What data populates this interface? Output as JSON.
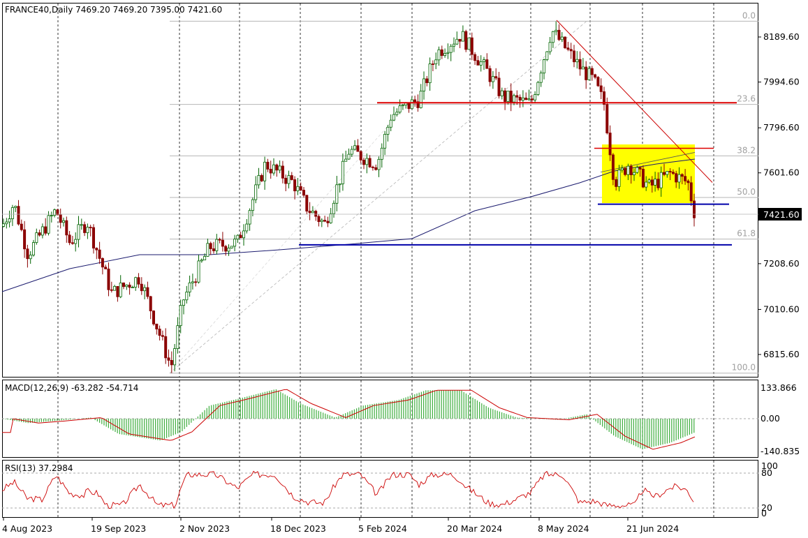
{
  "chart_data": {
    "type": "candlestick",
    "symbol": "FRANCE40",
    "timeframe": "Daily",
    "header": "FRANCE40,Daily  7469.20 7469.20 7395.00 7421.60",
    "ohlc": {
      "open": "7469.20",
      "high": "7469.20",
      "low": "7395.00",
      "close": "7421.60"
    },
    "last_price": "7421.60",
    "colors": {
      "bull": "#006400",
      "bear": "#8b0000",
      "ma_fast": "#00cfe8",
      "ma_slow": "#1a1a6e",
      "signal": "#cc0000",
      "hist": "#3fae3f",
      "channel": "#ffff00",
      "support": "#0000aa",
      "resistance": "#dd0000"
    },
    "price_axis": {
      "ylim": [
        6750,
        8290
      ],
      "ticks": [
        "8189.60",
        "7994.60",
        "7796.60",
        "7601.60",
        "7208.60",
        "7010.60",
        "6815.60"
      ]
    },
    "date_axis": {
      "labels": [
        "4 Aug 2023",
        "19 Sep 2023",
        "2 Nov 2023",
        "18 Dec 2023",
        "5 Feb 2024",
        "20 Mar 2024",
        "8 May 2024",
        "21 Jun 2024"
      ]
    },
    "fibonacci": [
      {
        "level": "0.0",
        "price": 8258
      },
      {
        "level": "23.6",
        "price": 7898
      },
      {
        "level": "38.2",
        "price": 7675
      },
      {
        "level": "50.0",
        "price": 7495
      },
      {
        "level": "61.8",
        "price": 7315
      },
      {
        "level": "100.0",
        "price": 6735
      }
    ],
    "horizontal_lines": {
      "resistance": 7905,
      "support": 7290,
      "channel_top": 7708,
      "channel_bottom": 7466
    },
    "macd": {
      "label": "MACD(12,26,9) -63.282 -54.714",
      "ticks": [
        "133.866",
        "0.00",
        "-140.835"
      ],
      "ylim": [
        -170,
        160
      ]
    },
    "rsi": {
      "label": "RSI(13) 37.2984",
      "ticks": [
        "100",
        "80",
        "20",
        "0"
      ],
      "ylim": [
        0,
        100
      ]
    }
  }
}
